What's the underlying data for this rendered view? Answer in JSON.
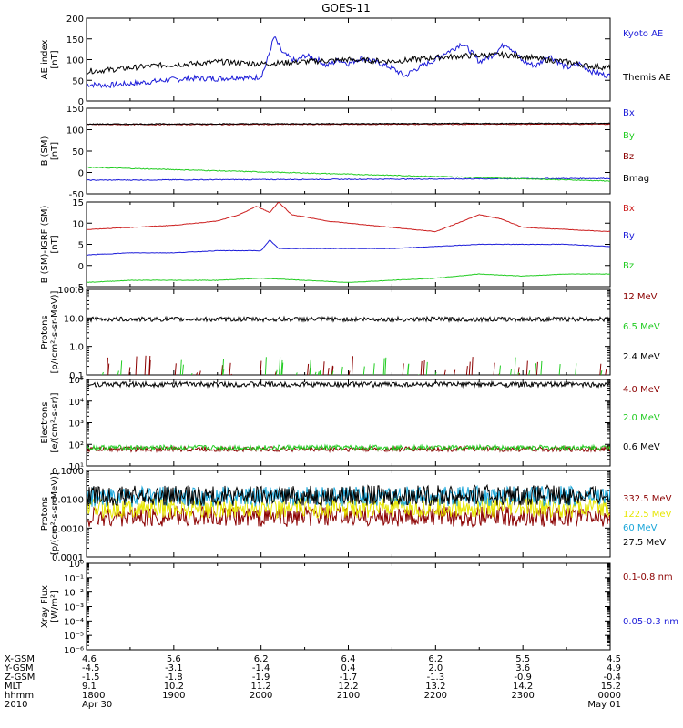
{
  "title": "GOES-11",
  "colors": {
    "black": "#000000",
    "blue": "#1c1cd9",
    "red": "#cc1f1f",
    "green": "#22cc22",
    "darkred": "#8b0000",
    "cyan": "#1aa6d9",
    "yellow": "#e6e600"
  },
  "chart_data": [
    {
      "type": "line",
      "ylabel": [
        "AE index",
        "[nT]"
      ],
      "ylim": [
        0,
        200
      ],
      "yticks": [
        "0",
        "50",
        "100",
        "150",
        "200"
      ],
      "series": [
        {
          "name": "Kyoto AE",
          "color": "blue",
          "x_hours": [
            0,
            0.5,
            1,
            1.5,
            2,
            2.5,
            3,
            3.5,
            3.8,
            4,
            4.1,
            4.3,
            4.5,
            4.8,
            5,
            5.3,
            5.5,
            5.8,
            6,
            6.3,
            6.6,
            7,
            7.3,
            7.5,
            7.8,
            8,
            8.2,
            8.4,
            8.6,
            8.8,
            9,
            9.3,
            9.6,
            9.8,
            10,
            10.3,
            10.6,
            11,
            11.3,
            11.6,
            12
          ],
          "values": [
            40,
            38,
            42,
            47,
            52,
            55,
            54,
            58,
            55,
            60,
            85,
            155,
            115,
            95,
            110,
            100,
            85,
            100,
            90,
            105,
            95,
            80,
            60,
            75,
            90,
            100,
            115,
            125,
            140,
            120,
            95,
            110,
            140,
            120,
            95,
            85,
            110,
            80,
            90,
            70,
            60
          ]
        },
        {
          "name": "Themis AE",
          "color": "black",
          "x_hours": [
            0,
            0.5,
            1,
            1.5,
            2,
            2.5,
            3,
            3.5,
            4,
            4.5,
            5,
            5.5,
            6,
            6.5,
            7,
            7.5,
            8,
            8.5,
            9,
            9.5,
            10,
            10.5,
            11,
            11.5,
            12
          ],
          "values": [
            72,
            75,
            80,
            85,
            88,
            90,
            95,
            92,
            90,
            92,
            95,
            97,
            100,
            98,
            96,
            100,
            105,
            108,
            110,
            112,
            108,
            100,
            95,
            85,
            80
          ]
        }
      ]
    },
    {
      "type": "line",
      "ylabel": [
        "B (SM)",
        "[nT]"
      ],
      "ylim": [
        -50,
        150
      ],
      "yticks": [
        "-50",
        "0",
        "50",
        "100",
        "150"
      ],
      "series": [
        {
          "name": "Bx",
          "color": "blue",
          "x_hours": [
            0,
            12
          ],
          "values": [
            -18,
            -14
          ]
        },
        {
          "name": "By",
          "color": "green",
          "x_hours": [
            0,
            12
          ],
          "values": [
            12,
            -20
          ]
        },
        {
          "name": "Bz",
          "color": "darkred",
          "x_hours": [
            0,
            12
          ],
          "values": [
            112,
            113
          ]
        },
        {
          "name": "Bmag",
          "color": "black",
          "x_hours": [
            0,
            12
          ],
          "values": [
            113,
            115
          ]
        }
      ]
    },
    {
      "type": "line",
      "ylabel": [
        "B (SM)-IGRF (SM)",
        "[nT]"
      ],
      "ylim": [
        -5,
        15
      ],
      "yticks": [
        "-5",
        "0",
        "5",
        "10",
        "15"
      ],
      "series": [
        {
          "name": "Bx",
          "color": "red",
          "x_hours": [
            0,
            1,
            2,
            3,
            3.5,
            3.9,
            4.2,
            4.4,
            4.7,
            5,
            5.5,
            6,
            7,
            8,
            9,
            9.5,
            10,
            11,
            12
          ],
          "values": [
            8.5,
            9,
            9.5,
            10.5,
            12,
            14,
            12.5,
            15,
            12,
            11.5,
            10.5,
            10,
            9,
            8,
            12,
            11,
            9,
            8.5,
            8
          ]
        },
        {
          "name": "By",
          "color": "blue",
          "x_hours": [
            0,
            1,
            2,
            3,
            3.5,
            4,
            4.2,
            4.4,
            5,
            6,
            7,
            8,
            9,
            10,
            11,
            12
          ],
          "values": [
            2.5,
            3,
            3,
            3.5,
            3.5,
            3.5,
            6,
            4,
            4,
            4,
            4,
            4.5,
            5,
            5,
            5,
            4.5
          ]
        },
        {
          "name": "Bz",
          "color": "green",
          "x_hours": [
            0,
            1,
            2,
            3,
            4,
            5,
            6,
            7,
            8,
            8.5,
            9,
            10,
            11,
            12
          ],
          "values": [
            -4,
            -3.5,
            -3.5,
            -3.5,
            -3,
            -3.5,
            -4,
            -3.5,
            -3,
            -2.5,
            -2,
            -2.5,
            -2,
            -2
          ]
        }
      ]
    },
    {
      "type": "line",
      "ylabel": [
        "Protons",
        "[p/(cm²-s-sr-MeV)]"
      ],
      "yscale": "log",
      "ylim": [
        0.1,
        100
      ],
      "yticks": [
        "0.1",
        "1.0",
        "10.0",
        "100.0"
      ],
      "series": [
        {
          "name": "12 MeV",
          "color": "darkred",
          "note": "sparse spikes near 0.1-0.4"
        },
        {
          "name": "6.5 MeV",
          "color": "green",
          "note": "sparse spikes near 0.1-0.5"
        },
        {
          "name": "2.4 MeV",
          "color": "black",
          "x_hours": [
            0,
            12
          ],
          "values": [
            9,
            9
          ]
        }
      ]
    },
    {
      "type": "line",
      "ylabel": [
        "Electrons",
        "[e/(cm²-s-sr)]"
      ],
      "yscale": "log",
      "ylim": [
        10,
        100000
      ],
      "yticks": [
        "10¹",
        "10²",
        "10³",
        "10⁴",
        "10⁵"
      ],
      "series": [
        {
          "name": "4.0 MeV",
          "color": "darkred",
          "x_hours": [
            0,
            12
          ],
          "values": [
            60,
            60
          ]
        },
        {
          "name": "2.0 MeV",
          "color": "green",
          "x_hours": [
            0,
            12
          ],
          "values": [
            70,
            70
          ]
        },
        {
          "name": "0.6 MeV",
          "color": "black",
          "x_hours": [
            0,
            12
          ],
          "values": [
            60000,
            58000
          ]
        }
      ]
    },
    {
      "type": "line",
      "ylabel": [
        "Protons",
        "[p/(cm²-s-sr-MeV)]"
      ],
      "yscale": "log",
      "ylim": [
        0.0001,
        0.1
      ],
      "yticks": [
        "0.0001",
        "0.0010",
        "0.0100",
        "0.1000"
      ],
      "series": [
        {
          "name": "332.5 MeV",
          "color": "darkred",
          "x_hours": [
            0,
            12
          ],
          "values": [
            0.0025,
            0.0025
          ]
        },
        {
          "name": "122.5 MeV",
          "color": "yellow",
          "x_hours": [
            0,
            12
          ],
          "values": [
            0.005,
            0.005
          ]
        },
        {
          "name": "60 MeV",
          "color": "cyan",
          "x_hours": [
            0,
            12
          ],
          "values": [
            0.012,
            0.013
          ]
        },
        {
          "name": "27.5 MeV",
          "color": "black",
          "x_hours": [
            0,
            12
          ],
          "values": [
            0.013,
            0.014
          ]
        }
      ]
    },
    {
      "type": "line",
      "ylabel": [
        "Xray Flux",
        "[W/m²]"
      ],
      "yscale": "log",
      "ylim": [
        1e-06,
        1
      ],
      "yticks": [
        "10⁻⁶",
        "10⁻⁵",
        "10⁻⁴",
        "10⁻³",
        "10⁻²",
        "10⁻¹",
        "10⁰"
      ],
      "series": [
        {
          "name": "0.1-0.8 nm",
          "color": "darkred",
          "values": []
        },
        {
          "name": "0.05-0.3 nm",
          "color": "blue",
          "values": []
        }
      ]
    }
  ],
  "footer": {
    "row_labels": [
      "X-GSM",
      "Y-GSM",
      "Z-GSM",
      "MLT",
      "hhmm",
      "2010"
    ],
    "columns": [
      [
        "4.6",
        "-4.5",
        "-1.5",
        "9.1",
        "1800",
        "Apr 30"
      ],
      [
        "5.6",
        "-3.1",
        "-1.8",
        "10.2",
        "1900",
        ""
      ],
      [
        "6.2",
        "-1.4",
        "-1.9",
        "11.2",
        "2000",
        ""
      ],
      [
        "6.4",
        "0.4",
        "-1.7",
        "12.2",
        "2100",
        ""
      ],
      [
        "6.2",
        "2.0",
        "-1.3",
        "13.2",
        "2200",
        ""
      ],
      [
        "5.5",
        "3.6",
        "-0.9",
        "14.2",
        "2300",
        ""
      ],
      [
        "4.5",
        "4.9",
        "-0.4",
        "15.2",
        "0000",
        "May 01"
      ]
    ]
  }
}
